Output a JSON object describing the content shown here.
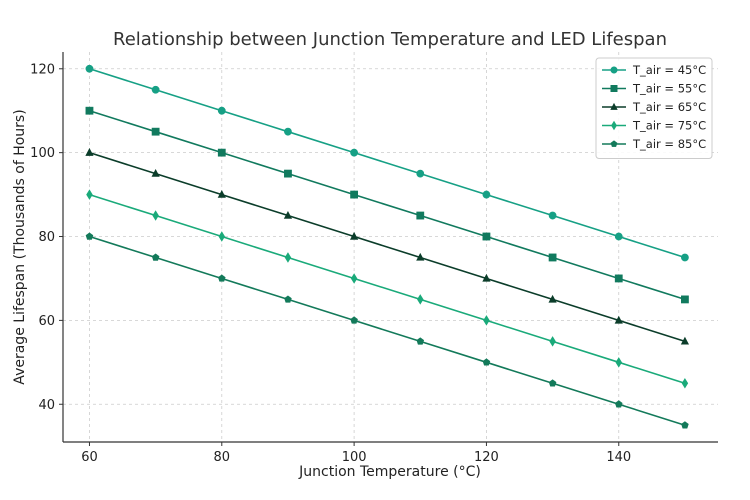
{
  "chart_data": {
    "type": "line",
    "title": "Relationship between Junction Temperature and LED Lifespan",
    "xlabel": "Junction Temperature (°C)",
    "ylabel": "Average Lifespan (Thousands of Hours)",
    "xlim": [
      56,
      155
    ],
    "ylim": [
      31,
      124
    ],
    "xticks": [
      60,
      80,
      100,
      120,
      140
    ],
    "yticks": [
      40,
      60,
      80,
      100,
      120
    ],
    "grid": true,
    "legend_position": "top-right",
    "x": [
      60,
      70,
      80,
      90,
      100,
      110,
      120,
      130,
      140,
      150
    ],
    "series": [
      {
        "name": "T_air = 45°C",
        "marker": "circle",
        "linestyle": "solid",
        "color": "#16a085",
        "values": [
          120,
          115,
          110,
          105,
          100,
          95,
          90,
          85,
          80,
          75
        ]
      },
      {
        "name": "T_air = 55°C",
        "marker": "square",
        "linestyle": "solid",
        "color": "#117a5e",
        "values": [
          110,
          105,
          100,
          95,
          90,
          85,
          80,
          75,
          70,
          65
        ]
      },
      {
        "name": "T_air = 65°C",
        "marker": "triangle",
        "linestyle": "solid",
        "color": "#0b3d2a",
        "values": [
          100,
          95,
          90,
          85,
          80,
          75,
          70,
          65,
          60,
          55
        ]
      },
      {
        "name": "T_air = 75°C",
        "marker": "diamond",
        "linestyle": "solid",
        "color": "#1aaa7a",
        "values": [
          90,
          85,
          80,
          75,
          70,
          65,
          60,
          55,
          50,
          45
        ]
      },
      {
        "name": "T_air = 85°C",
        "marker": "pentagon",
        "linestyle": "solid",
        "color": "#137a5a",
        "values": [
          80,
          75,
          70,
          65,
          60,
          55,
          50,
          45,
          40,
          35
        ]
      }
    ]
  }
}
